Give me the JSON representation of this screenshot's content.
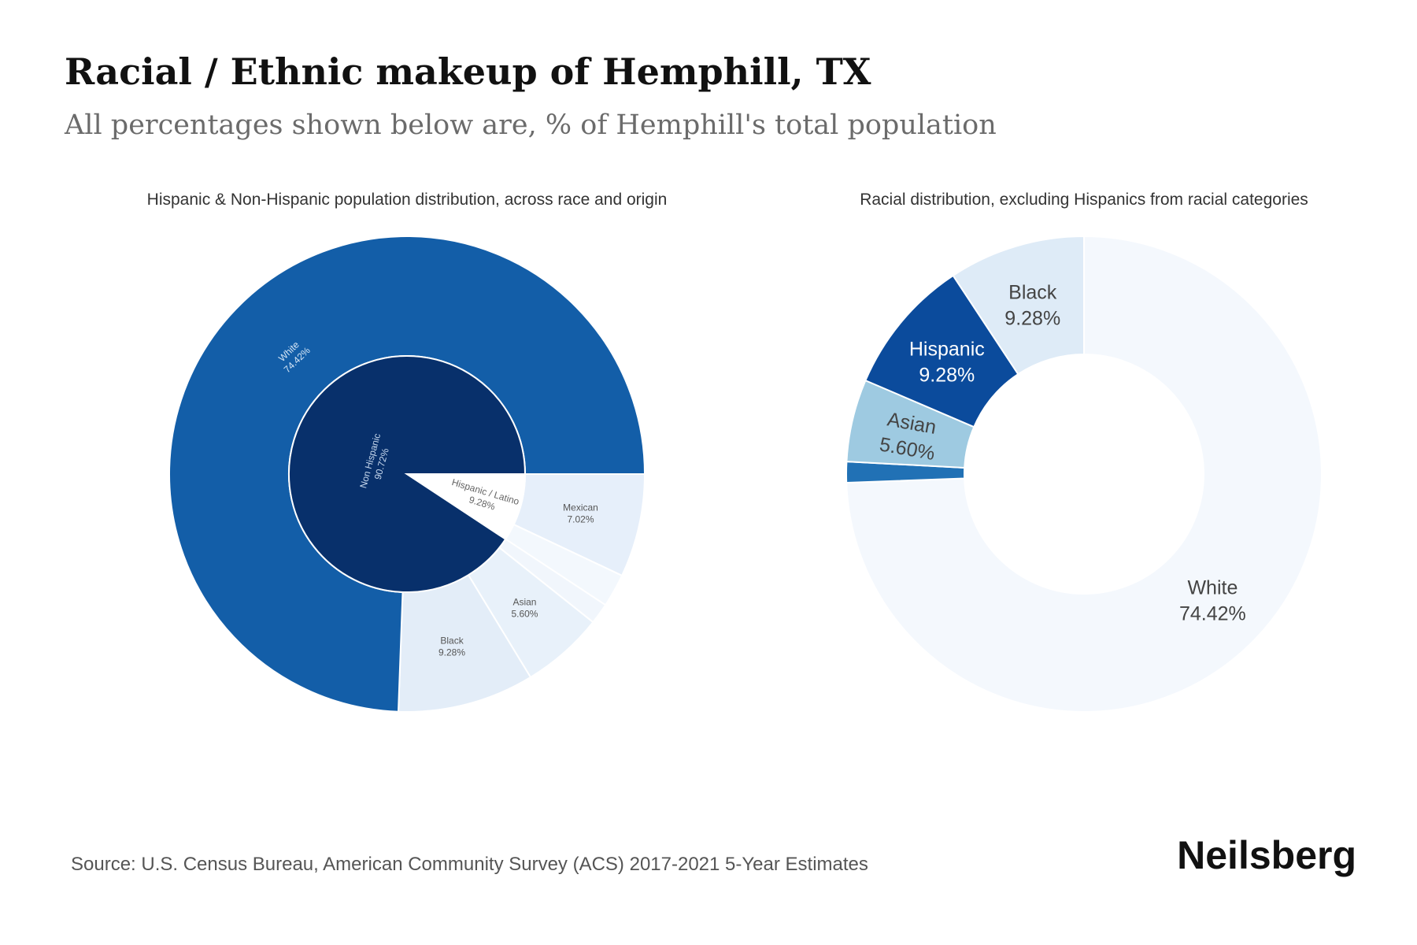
{
  "title": "Racial / Ethnic makeup of Hemphill, TX",
  "subtitle": "All percentages shown below are, % of Hemphill's total population",
  "source": "Source: U.S. Census Bureau, American Community Survey (ACS) 2017-2021 5-Year Estimates",
  "brand": "Neilsberg",
  "colors": {
    "title": "#111111",
    "subtitle": "#6b6b6b",
    "text": "#333333",
    "palette": [
      "#08306b",
      "#08519c",
      "#2171b5",
      "#6baed6",
      "#9ecae1",
      "#c6dbef",
      "#deebf7",
      "#f7fbff"
    ]
  },
  "chart_data": [
    {
      "type": "sunburst",
      "title": "Hispanic & Non-Hispanic population distribution, across race and origin",
      "inner": [
        {
          "name": "Non Hispanic",
          "value": 90.72,
          "label": "90.72%",
          "color": "#08306b"
        },
        {
          "name": "Hispanic / Latino",
          "value": 9.28,
          "label": "9.28%",
          "color": "#ffffff"
        }
      ],
      "outer": [
        {
          "name": "White",
          "value": 74.42,
          "label": "74.42%",
          "color": "#135ea8",
          "parent": "Non Hispanic"
        },
        {
          "name": "Black",
          "value": 9.28,
          "label": "9.28%",
          "color": "#e3edf8",
          "parent": "Non Hispanic"
        },
        {
          "name": "Asian",
          "value": 5.6,
          "label": "5.60%",
          "color": "#e8f1fa",
          "parent": "Non Hispanic"
        },
        {
          "name": "",
          "value": 1.42,
          "label": "",
          "color": "#f1f6fc",
          "parent": "Non Hispanic"
        },
        {
          "name": "Mexican",
          "value": 7.02,
          "label": "7.02%",
          "color": "#e6effa",
          "parent": "Hispanic / Latino"
        },
        {
          "name": "",
          "value": 2.26,
          "label": "",
          "color": "#f3f8fd",
          "parent": "Hispanic / Latino"
        }
      ]
    },
    {
      "type": "donut",
      "title": "Racial distribution, excluding Hispanics from racial categories",
      "slices": [
        {
          "name": "White",
          "value": 74.42,
          "label": "74.42%",
          "color": "#f4f8fd"
        },
        {
          "name": "",
          "value": 1.42,
          "label": "",
          "color": "#2171b5"
        },
        {
          "name": "Asian",
          "value": 5.6,
          "label": "5.60%",
          "color": "#9ecae1"
        },
        {
          "name": "Hispanic",
          "value": 9.28,
          "label": "9.28%",
          "color": "#0b4b9c"
        },
        {
          "name": "Black",
          "value": 9.28,
          "label": "9.28%",
          "color": "#deebf7"
        }
      ]
    }
  ]
}
